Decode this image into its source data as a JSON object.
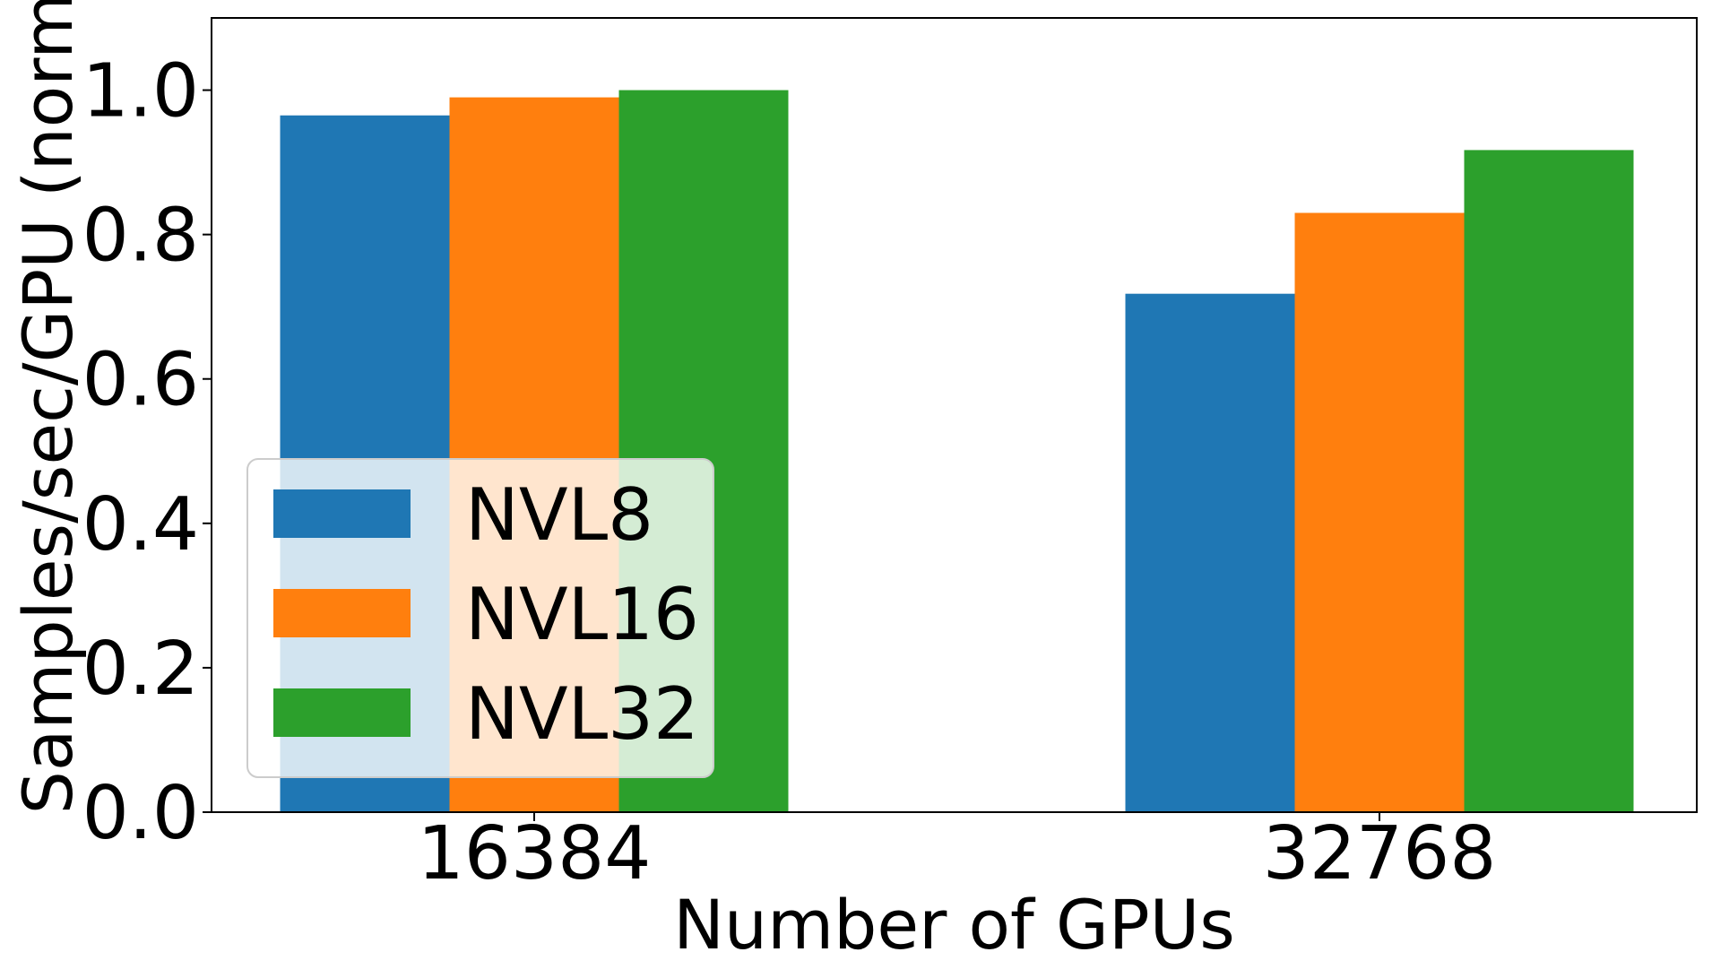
{
  "chart_data": {
    "type": "bar",
    "title": "",
    "xlabel": "Number of GPUs",
    "ylabel": "Samples/sec/GPU (norm.",
    "categories": [
      "16384",
      "32768"
    ],
    "series": [
      {
        "name": "NVL8",
        "color": "#1f77b4",
        "values": [
          0.965,
          0.718
        ]
      },
      {
        "name": "NVL16",
        "color": "#ff7f0e",
        "values": [
          0.99,
          0.83
        ]
      },
      {
        "name": "NVL32",
        "color": "#2ca02c",
        "values": [
          1.0,
          0.917
        ]
      }
    ],
    "ylim": [
      0,
      1.1
    ],
    "yticks": [
      0.0,
      0.2,
      0.4,
      0.6,
      0.8,
      1.0
    ],
    "ytick_labels": [
      "0.0",
      "0.2",
      "0.4",
      "0.6",
      "0.8",
      "1.0"
    ],
    "grid": false,
    "legend_position": "lower-left"
  }
}
